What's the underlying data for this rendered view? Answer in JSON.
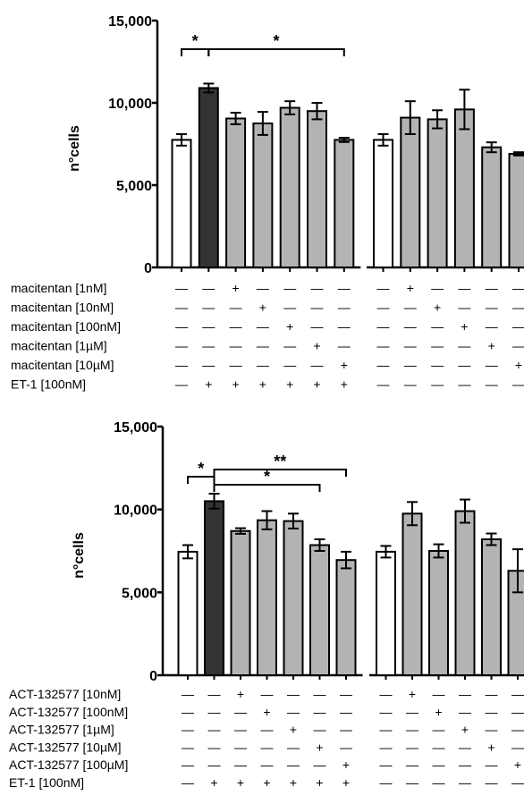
{
  "chart_data": [
    {
      "type": "bar",
      "ylabel": "n°cells",
      "ylim": [
        0,
        15000
      ],
      "yticks": [
        0,
        5000,
        10000,
        15000
      ],
      "ytick_labels": [
        "0",
        "5,000",
        "10,000",
        "15,000"
      ],
      "colors": {
        "control": "#ffffff",
        "et1": "#333333",
        "treated": "#b3b3b3"
      },
      "groups": [
        {
          "bars": [
            {
              "value": 7750,
              "error": 350,
              "fill": "control"
            },
            {
              "value": 10900,
              "error": 270,
              "fill": "et1"
            },
            {
              "value": 9050,
              "error": 350,
              "fill": "treated"
            },
            {
              "value": 8750,
              "error": 700,
              "fill": "treated"
            },
            {
              "value": 9700,
              "error": 400,
              "fill": "treated"
            },
            {
              "value": 9500,
              "error": 500,
              "fill": "treated"
            },
            {
              "value": 7750,
              "error": 130,
              "fill": "treated"
            }
          ]
        },
        {
          "bars": [
            {
              "value": 7750,
              "error": 350,
              "fill": "control"
            },
            {
              "value": 9100,
              "error": 1000,
              "fill": "treated"
            },
            {
              "value": 9000,
              "error": 550,
              "fill": "treated"
            },
            {
              "value": 9600,
              "error": 1200,
              "fill": "treated"
            },
            {
              "value": 7300,
              "error": 300,
              "fill": "treated"
            },
            {
              "value": 6900,
              "error": 100,
              "fill": "treated"
            }
          ]
        }
      ],
      "significance": [
        {
          "label": "*",
          "from": [
            0,
            0
          ],
          "to": [
            0,
            1
          ],
          "level": 0
        },
        {
          "label": "*",
          "from": [
            0,
            1
          ],
          "to": [
            0,
            6
          ],
          "level": 0
        }
      ],
      "conditions": [
        {
          "label": "macitentan [1nM]",
          "group1": [
            "—",
            "—",
            "+",
            "—",
            "—",
            "—",
            "—"
          ],
          "group2": [
            "—",
            "+",
            "—",
            "—",
            "—",
            "—"
          ]
        },
        {
          "label": "macitentan [10nM]",
          "group1": [
            "—",
            "—",
            "—",
            "+",
            "—",
            "—",
            "—"
          ],
          "group2": [
            "—",
            "—",
            "+",
            "—",
            "—",
            "—"
          ]
        },
        {
          "label": "macitentan [100nM]",
          "group1": [
            "—",
            "—",
            "—",
            "—",
            "+",
            "—",
            "—"
          ],
          "group2": [
            "—",
            "—",
            "—",
            "+",
            "—",
            "—"
          ]
        },
        {
          "label": "macitentan [1µM]",
          "group1": [
            "—",
            "—",
            "—",
            "—",
            "—",
            "+",
            "—"
          ],
          "group2": [
            "—",
            "—",
            "—",
            "—",
            "+",
            "—"
          ]
        },
        {
          "label": "macitentan [10µM]",
          "group1": [
            "—",
            "—",
            "—",
            "—",
            "—",
            "—",
            "+"
          ],
          "group2": [
            "—",
            "—",
            "—",
            "—",
            "—",
            "+"
          ]
        },
        {
          "label": "ET-1 [100nM]",
          "group1": [
            "—",
            "+",
            "+",
            "+",
            "+",
            "+",
            "+"
          ],
          "group2": [
            "—",
            "—",
            "—",
            "—",
            "—",
            "—"
          ]
        }
      ]
    },
    {
      "type": "bar",
      "ylabel": "n°cells",
      "ylim": [
        0,
        15000
      ],
      "yticks": [
        0,
        5000,
        10000,
        15000
      ],
      "ytick_labels": [
        "0",
        "5,000",
        "10,000",
        "15,000"
      ],
      "colors": {
        "control": "#ffffff",
        "et1": "#333333",
        "treated": "#b3b3b3"
      },
      "groups": [
        {
          "bars": [
            {
              "value": 7450,
              "error": 400,
              "fill": "control"
            },
            {
              "value": 10500,
              "error": 450,
              "fill": "et1"
            },
            {
              "value": 8700,
              "error": 170,
              "fill": "treated"
            },
            {
              "value": 9350,
              "error": 550,
              "fill": "treated"
            },
            {
              "value": 9300,
              "error": 450,
              "fill": "treated"
            },
            {
              "value": 7850,
              "error": 350,
              "fill": "treated"
            },
            {
              "value": 6950,
              "error": 500,
              "fill": "treated"
            }
          ]
        },
        {
          "bars": [
            {
              "value": 7450,
              "error": 350,
              "fill": "control"
            },
            {
              "value": 9750,
              "error": 700,
              "fill": "treated"
            },
            {
              "value": 7500,
              "error": 400,
              "fill": "treated"
            },
            {
              "value": 9900,
              "error": 700,
              "fill": "treated"
            },
            {
              "value": 8200,
              "error": 350,
              "fill": "treated"
            },
            {
              "value": 6300,
              "error": 1300,
              "fill": "treated"
            }
          ]
        }
      ],
      "significance": [
        {
          "label": "*",
          "from": [
            0,
            0
          ],
          "to": [
            0,
            1
          ],
          "level": 0
        },
        {
          "label": "**",
          "from": [
            0,
            1
          ],
          "to": [
            0,
            6
          ],
          "level": 1
        },
        {
          "label": "*",
          "from": [
            0,
            1
          ],
          "to": [
            0,
            5
          ],
          "level": 0
        }
      ],
      "conditions": [
        {
          "label": "ACT-132577 [10nM]",
          "group1": [
            "—",
            "—",
            "+",
            "—",
            "—",
            "—",
            "—"
          ],
          "group2": [
            "—",
            "+",
            "—",
            "—",
            "—",
            "—"
          ]
        },
        {
          "label": "ACT-132577 [100nM]",
          "group1": [
            "—",
            "—",
            "—",
            "+",
            "—",
            "—",
            "—"
          ],
          "group2": [
            "—",
            "—",
            "+",
            "—",
            "—",
            "—"
          ]
        },
        {
          "label": "ACT-132577 [1µM]",
          "group1": [
            "—",
            "—",
            "—",
            "—",
            "+",
            "—",
            "—"
          ],
          "group2": [
            "—",
            "—",
            "—",
            "+",
            "—",
            "—"
          ]
        },
        {
          "label": "ACT-132577 [10µM]",
          "group1": [
            "—",
            "—",
            "—",
            "—",
            "—",
            "+",
            "—"
          ],
          "group2": [
            "—",
            "—",
            "—",
            "—",
            "+",
            "—"
          ]
        },
        {
          "label": "ACT-132577 [100µM]",
          "group1": [
            "—",
            "—",
            "—",
            "—",
            "—",
            "—",
            "+"
          ],
          "group2": [
            "—",
            "—",
            "—",
            "—",
            "—",
            "+"
          ]
        },
        {
          "label": "ET-1 [100nM]",
          "group1": [
            "—",
            "+",
            "+",
            "+",
            "+",
            "+",
            "+"
          ],
          "group2": [
            "—",
            "—",
            "—",
            "—",
            "—",
            "—"
          ]
        }
      ]
    }
  ]
}
